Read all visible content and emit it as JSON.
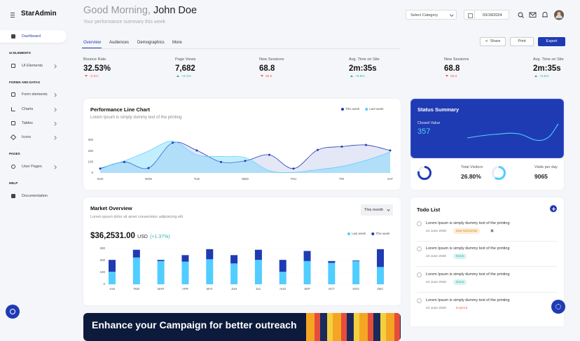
{
  "sidebar": {
    "brand": "StarAdmin",
    "dashboard": "Dashboard",
    "sections": [
      {
        "title": "UI ELEMENTS",
        "items": [
          "UI Elements"
        ]
      },
      {
        "title": "FORMS AND DATAS",
        "items": [
          "Form elements",
          "Charts",
          "Tables",
          "Icons"
        ]
      },
      {
        "title": "PAGES",
        "items": [
          "User Pages"
        ]
      },
      {
        "title": "HELP",
        "items": [
          "Documentation"
        ]
      }
    ]
  },
  "header": {
    "greeting": "Good Morning,",
    "name": "John Doe",
    "subtitle": "Your performance summary this week",
    "category_select": "Select Category",
    "date": "03/18/2024"
  },
  "tabs": [
    "Overview",
    "Audiences",
    "Demographics",
    "More"
  ],
  "actions": [
    "Share",
    "Print",
    "Export"
  ],
  "stats": [
    {
      "label": "Bounce Rate",
      "value": "32.53%",
      "change": "-0.5%",
      "trend": "down"
    },
    {
      "label": "Page Views",
      "value": "7,682",
      "change": "+0.1%",
      "trend": "up"
    },
    {
      "label": "New Sessions",
      "value": "68.8",
      "change": "68.8",
      "trend": "down"
    },
    {
      "label": "Avg. Time on Site",
      "value": "2m:35s",
      "change": "+0.8%",
      "trend": "up"
    },
    {
      "label": "New Sessions",
      "value": "68.8",
      "change": "68.8",
      "trend": "down"
    },
    {
      "label": "Avg. Time on Site",
      "value": "2m:35s",
      "change": "+0.8%",
      "trend": "up"
    }
  ],
  "status_summary": {
    "title": "Status Summary",
    "label": "Closed Value",
    "value": "357"
  },
  "visitors": [
    {
      "label": "Total Visitors",
      "value": "26.80%"
    },
    {
      "label": "Visits per day",
      "value": "9065"
    }
  ],
  "chart_data": [
    {
      "type": "line",
      "title": "Performance Line Chart",
      "subtitle": "Lorem Ipsum is simply dummy text of the printing",
      "categories": [
        "SUN",
        null,
        "MON",
        null,
        "TUE",
        null,
        "WED",
        null,
        "THU",
        null,
        "FRI",
        null,
        "SAT"
      ],
      "series": [
        {
          "name": "This week",
          "color": "#1f3bb3",
          "values": [
            40,
            100,
            45,
            275,
            205,
            100,
            110,
            165,
            40,
            210,
            240,
            255,
            205
          ]
        },
        {
          "name": "Last week",
          "color": "#52cdff",
          "values": [
            45,
            110,
            200,
            290,
            165,
            150,
            140,
            20,
            5,
            30,
            60,
            115,
            190
          ]
        }
      ],
      "ylim": [
        0,
        300
      ],
      "yticks": [
        0,
        100,
        200,
        300
      ],
      "grid": false,
      "legend": "top-right"
    },
    {
      "type": "bar",
      "title": "Market Overview",
      "subtitle": "Lorem ipsum dolor sit amet consectetur adipisicing elit",
      "period_select": "This month",
      "amount": "$36,2531.00",
      "currency": "USD",
      "change": "(+1.37%)",
      "categories": [
        "JAN",
        "FEB",
        "MAR",
        "APR",
        "MAY",
        "JUN",
        "JUL",
        "AUG",
        "SEP",
        "OCT",
        "NOV",
        "DEC"
      ],
      "series": [
        {
          "name": "Last week",
          "color": "#52cdff",
          "values": [
            105,
            225,
            195,
            190,
            210,
            175,
            205,
            105,
            195,
            180,
            195,
            145
          ]
        },
        {
          "name": "This week",
          "color": "#1f3bb3",
          "values": [
            100,
            65,
            10,
            55,
            85,
            70,
            85,
            100,
            85,
            15,
            5,
            150
          ]
        }
      ],
      "stacked": true,
      "ylim": [
        0,
        300
      ],
      "yticks": [
        0,
        100,
        200,
        300
      ],
      "grid": true,
      "legend": "top-right"
    }
  ],
  "todo": {
    "title": "Todo List",
    "items": [
      {
        "text": "Lorem Ipsum is simply dummy text of the printing",
        "date": "24 June 2020",
        "status": "Due tomorrow",
        "style": "warning"
      },
      {
        "text": "Lorem Ipsum is simply dummy text of the printing",
        "date": "23 June 2020",
        "status": "Done",
        "style": "success"
      },
      {
        "text": "Lorem Ipsum is simply dummy text of the printing",
        "date": "24 June 2020",
        "status": "Done",
        "style": "success"
      },
      {
        "text": "Lorem Ipsum is simply dummy text of the printing",
        "date": "24 June 2020",
        "status": "Expired",
        "style": "danger"
      }
    ]
  },
  "banner": {
    "title": "Enhance your Campaign for better outreach"
  }
}
